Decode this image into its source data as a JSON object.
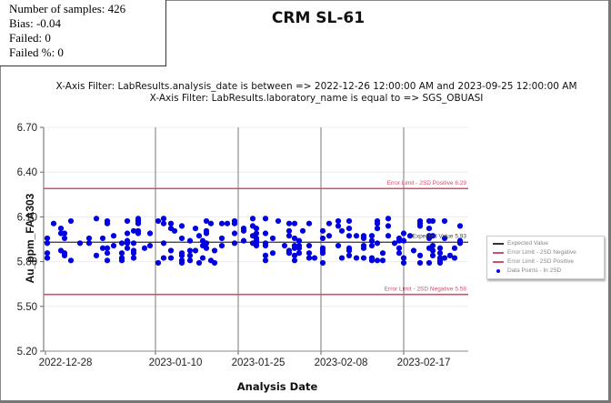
{
  "stats": {
    "samples_label": "Number of samples: 426",
    "bias_label": "Bias: -0.04",
    "failed_label": "Failed: 0",
    "failed_pct_label": "Failed %: 0"
  },
  "title": "CRM SL-61",
  "filters": [
    "X-Axis Filter: LabResults.analysis_date is between => 2022-12-26 12:00:00 AM and 2023-09-25 12:00:00 AM",
    "X-Axis Filter: LabResults.laboratory_name is equal to => SGS_OBUASI"
  ],
  "colors": {
    "points": "#0000e0",
    "limit": "#d0506e",
    "expected": "#333333",
    "grid": "#ececec",
    "vgrid": "#7a7a7a"
  },
  "chart_data": {
    "type": "scatter",
    "title": "CRM SL-61",
    "xlabel": "Analysis Date",
    "ylabel": "Au_ppm_FAA303",
    "ylim": [
      5.2,
      6.7
    ],
    "yticks": [
      "6.70",
      "6.40",
      "6.10",
      "5.80",
      "5.50",
      "5.20"
    ],
    "xticks": [
      "2022-12-28",
      "2023-01-10",
      "2023-01-25",
      "2023-02-08",
      "2023-02-17"
    ],
    "grid": true,
    "legend_position": "right",
    "legend": [
      "Expected Value",
      "Error Limit - 2SD Negative",
      "Error Limit - 2SD Positive",
      "Data Points - In 2SD"
    ],
    "reference_lines": [
      {
        "name": "Expected Value",
        "value": 5.93,
        "label": "Expected Value 5.93"
      },
      {
        "name": "Error Limit - 2SD Positive",
        "value": 6.29,
        "label": "Error Limit - 2SD Positive 6.29"
      },
      {
        "name": "Error Limit - 2SD Negative",
        "value": 5.58,
        "label": "Error Limit - 2SD Negative 5.58"
      }
    ],
    "series": [
      {
        "name": "Data Points - In 2SD",
        "count": 426,
        "y_range_approx": [
          5.79,
          6.09
        ]
      }
    ]
  }
}
